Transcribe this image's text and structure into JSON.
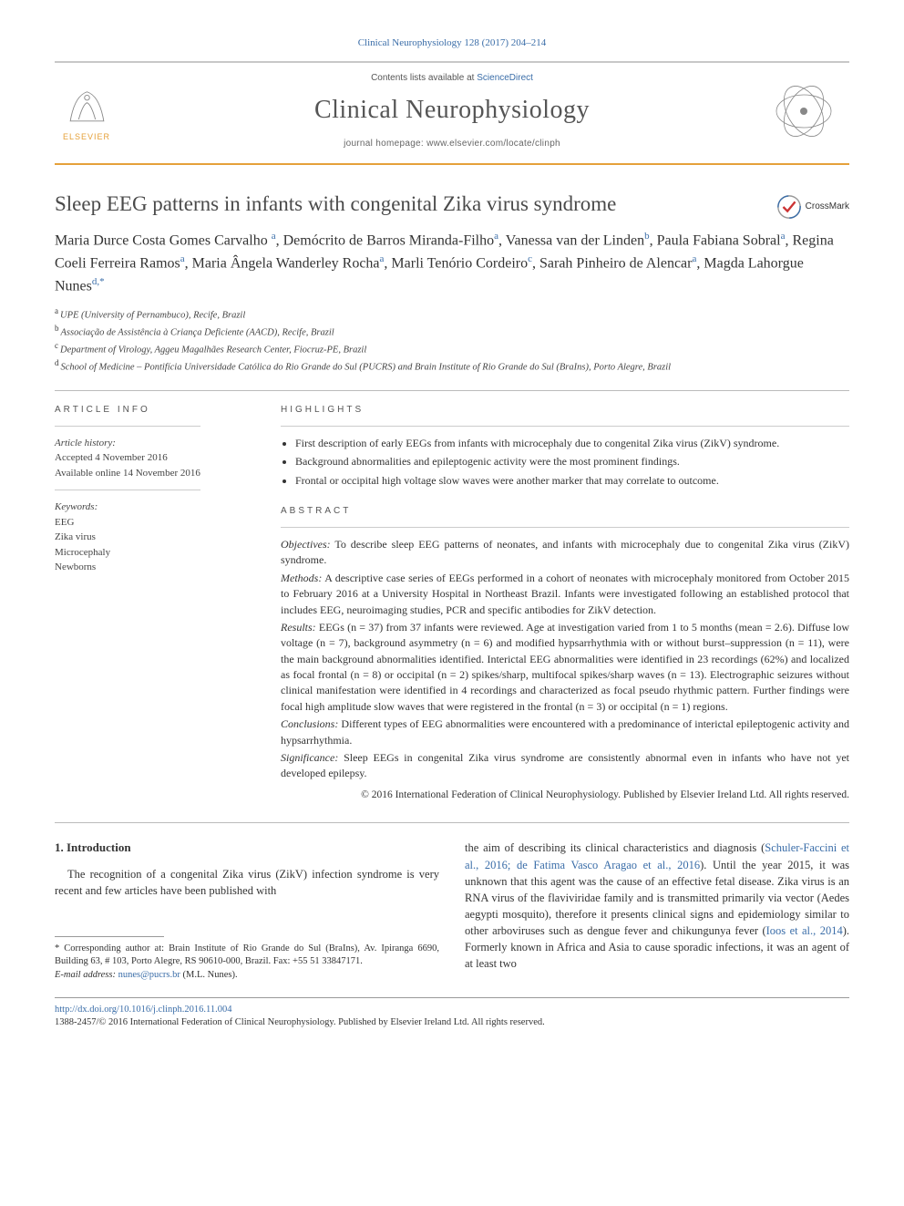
{
  "citation": "Clinical Neurophysiology 128 (2017) 204–214",
  "header": {
    "contents_prefix": "Contents lists available at ",
    "contents_link": "ScienceDirect",
    "journal_name": "Clinical Neurophysiology",
    "homepage_prefix": "journal homepage: ",
    "homepage_url": "www.elsevier.com/locate/clinph",
    "publisher": "ELSEVIER"
  },
  "colors": {
    "link": "#3a6da8",
    "accent": "#e5a13a",
    "text": "#333333",
    "rule": "#bbbbbb"
  },
  "article": {
    "title": "Sleep EEG patterns in infants with congenital Zika virus syndrome",
    "crossmark": "CrossMark",
    "authors_html": "Maria Durce Costa Gomes Carvalho <sup>a</sup>, Demócrito de Barros Miranda-Filho<sup>a</sup>, Vanessa van der Linden<sup>b</sup>, Paula Fabiana Sobral<sup>a</sup>, Regina Coeli Ferreira Ramos<sup>a</sup>, Maria Ângela Wanderley Rocha<sup>a</sup>, Marli Tenório Cordeiro<sup>c</sup>, Sarah Pinheiro de Alencar<sup>a</sup>, Magda Lahorgue Nunes<sup>d,*</sup>",
    "affiliations": [
      {
        "sup": "a",
        "text": "UPE (University of Pernambuco), Recife, Brazil"
      },
      {
        "sup": "b",
        "text": "Associação de Assistência à Criança Deficiente (AACD), Recife, Brazil"
      },
      {
        "sup": "c",
        "text": "Department of Virology, Aggeu Magalhães Research Center, Fiocruz-PE, Brazil"
      },
      {
        "sup": "d",
        "text": "School of Medicine – Pontifícia Universidade Católica do Rio Grande do Sul (PUCRS) and Brain Institute of Rio Grande do Sul (BraIns), Porto Alegre, Brazil"
      }
    ]
  },
  "info": {
    "label": "ARTICLE INFO",
    "history_label": "Article history:",
    "accepted": "Accepted 4 November 2016",
    "online": "Available online 14 November 2016",
    "keywords_label": "Keywords:",
    "keywords": [
      "EEG",
      "Zika virus",
      "Microcephaly",
      "Newborns"
    ]
  },
  "highlights": {
    "label": "HIGHLIGHTS",
    "items": [
      "First description of early EEGs from infants with microcephaly due to congenital Zika virus (ZikV) syndrome.",
      "Background abnormalities and epileptogenic activity were the most prominent findings.",
      "Frontal or occipital high voltage slow waves were another marker that may correlate to outcome."
    ]
  },
  "abstract": {
    "label": "ABSTRACT",
    "objectives_label": "Objectives:",
    "objectives": "To describe sleep EEG patterns of neonates, and infants with microcephaly due to congenital Zika virus (ZikV) syndrome.",
    "methods_label": "Methods:",
    "methods": "A descriptive case series of EEGs performed in a cohort of neonates with microcephaly monitored from October 2015 to February 2016 at a University Hospital in Northeast Brazil. Infants were investigated following an established protocol that includes EEG, neuroimaging studies, PCR and specific antibodies for ZikV detection.",
    "results_label": "Results:",
    "results": "EEGs (n = 37) from 37 infants were reviewed. Age at investigation varied from 1 to 5 months (mean = 2.6). Diffuse low voltage (n = 7), background asymmetry (n = 6) and modified hypsarrhythmia with or without burst–suppression (n = 11), were the main background abnormalities identified. Interictal EEG abnormalities were identified in 23 recordings (62%) and localized as focal frontal (n = 8) or occipital (n = 2) spikes/sharp, multifocal spikes/sharp waves (n = 13). Electrographic seizures without clinical manifestation were identified in 4 recordings and characterized as focal pseudo rhythmic pattern. Further findings were focal high amplitude slow waves that were registered in the frontal (n = 3) or occipital (n = 1) regions.",
    "conclusions_label": "Conclusions:",
    "conclusions": "Different types of EEG abnormalities were encountered with a predominance of interictal epileptogenic activity and hypsarrhythmia.",
    "significance_label": "Significance:",
    "significance": "Sleep EEGs in congenital Zika virus syndrome are consistently abnormal even in infants who have not yet developed epilepsy.",
    "copyright": "© 2016 International Federation of Clinical Neurophysiology. Published by Elsevier Ireland Ltd. All rights reserved."
  },
  "body": {
    "section_num": "1.",
    "section_title": "Introduction",
    "col1_p1": "The recognition of a congenital Zika virus (ZikV) infection syndrome is very recent and few articles have been published with",
    "col2_p1a": "the aim of describing its clinical characteristics and diagnosis (",
    "col2_ref1": "Schuler-Faccini et al., 2016; de Fatima Vasco Aragao et al., 2016",
    "col2_p1b": "). Until the year 2015, it was unknown that this agent was the cause of an effective fetal disease. Zika virus is an RNA virus of the flaviviridae family and is transmitted primarily via vector (Aedes aegypti mosquito), therefore it presents clinical signs and epidemiology similar to other arboviruses such as dengue fever and chikungunya fever (",
    "col2_ref2": "Ioos et al., 2014",
    "col2_p1c": "). Formerly known in Africa and Asia to cause sporadic infections, it was an agent of at least two"
  },
  "footnotes": {
    "corr_label": "* Corresponding author at:",
    "corr_text": " Brain Institute of Rio Grande do Sul (BraIns), Av. Ipiranga 6690, Building 63, # 103, Porto Alegre, RS 90610-000, Brazil. Fax: +55 51 33847171.",
    "email_label": "E-mail address: ",
    "email": "nunes@pucrs.br",
    "email_name": " (M.L. Nunes)."
  },
  "footer": {
    "doi": "http://dx.doi.org/10.1016/j.clinph.2016.11.004",
    "issn": "1388-2457/© 2016 International Federation of Clinical Neurophysiology. Published by Elsevier Ireland Ltd. All rights reserved."
  }
}
